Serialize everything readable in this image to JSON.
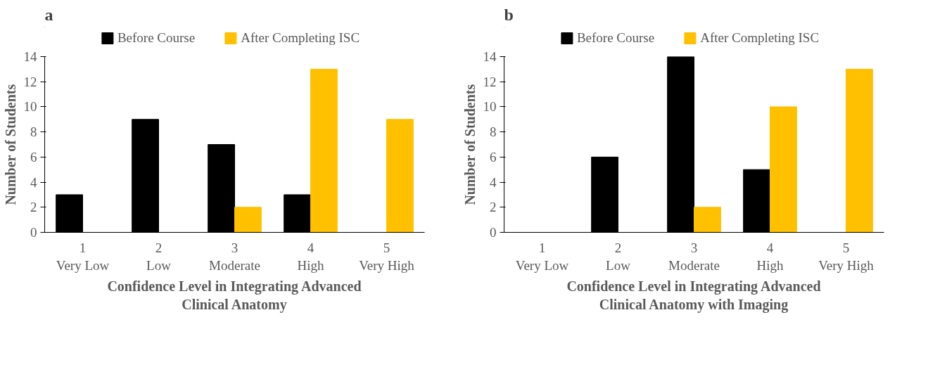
{
  "chart_data": [
    {
      "type": "bar",
      "title": "a",
      "xlabel": "Confidence Level in Integrating Advanced\nClinical Anatomy",
      "ylabel": "Number of Students",
      "categories": [
        "1\nVery Low",
        "2\nLow",
        "3\nModerate",
        "4\nHigh",
        "5\nVery High"
      ],
      "series": [
        {
          "name": "Before Course",
          "color": "#000000",
          "values": [
            3,
            9,
            7,
            3,
            0
          ]
        },
        {
          "name": "After Completing ISC",
          "color": "#ffc000",
          "values": [
            0,
            0,
            2,
            13,
            9
          ]
        }
      ],
      "ylim": [
        0,
        14
      ],
      "yticks": [
        0,
        2,
        4,
        6,
        8,
        10,
        12,
        14
      ],
      "legend": "top",
      "grid": false
    },
    {
      "type": "bar",
      "title": "b",
      "xlabel": "Confidence Level in Integrating Advanced\nClinical Anatomy with Imaging",
      "ylabel": "Number of Students",
      "categories": [
        "1\nVery Low",
        "2\nLow",
        "3\nModerate",
        "4\nHigh",
        "5\nVery High"
      ],
      "series": [
        {
          "name": "Before Course",
          "color": "#000000",
          "values": [
            0,
            6,
            14,
            5,
            0
          ]
        },
        {
          "name": "After Completing ISC",
          "color": "#ffc000",
          "values": [
            0,
            0,
            2,
            10,
            13
          ]
        }
      ],
      "ylim": [
        0,
        14
      ],
      "yticks": [
        0,
        2,
        4,
        6,
        8,
        10,
        12,
        14
      ],
      "legend": "top",
      "grid": false
    }
  ]
}
